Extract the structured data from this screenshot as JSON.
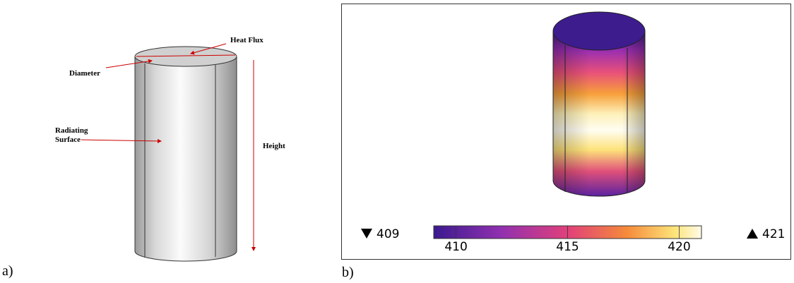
{
  "panel_a": {
    "label": "a)",
    "annotations": {
      "heat_flux": "Heat Flux",
      "diameter": "Diameter",
      "radiating_surface": [
        "Radiating",
        "Surface"
      ],
      "height": "Height"
    }
  },
  "panel_b": {
    "label": "b)",
    "min_label": "409",
    "max_label": "421",
    "colorbar": {
      "range": [
        409,
        421
      ],
      "ticks": [
        410,
        415,
        420
      ]
    }
  }
}
